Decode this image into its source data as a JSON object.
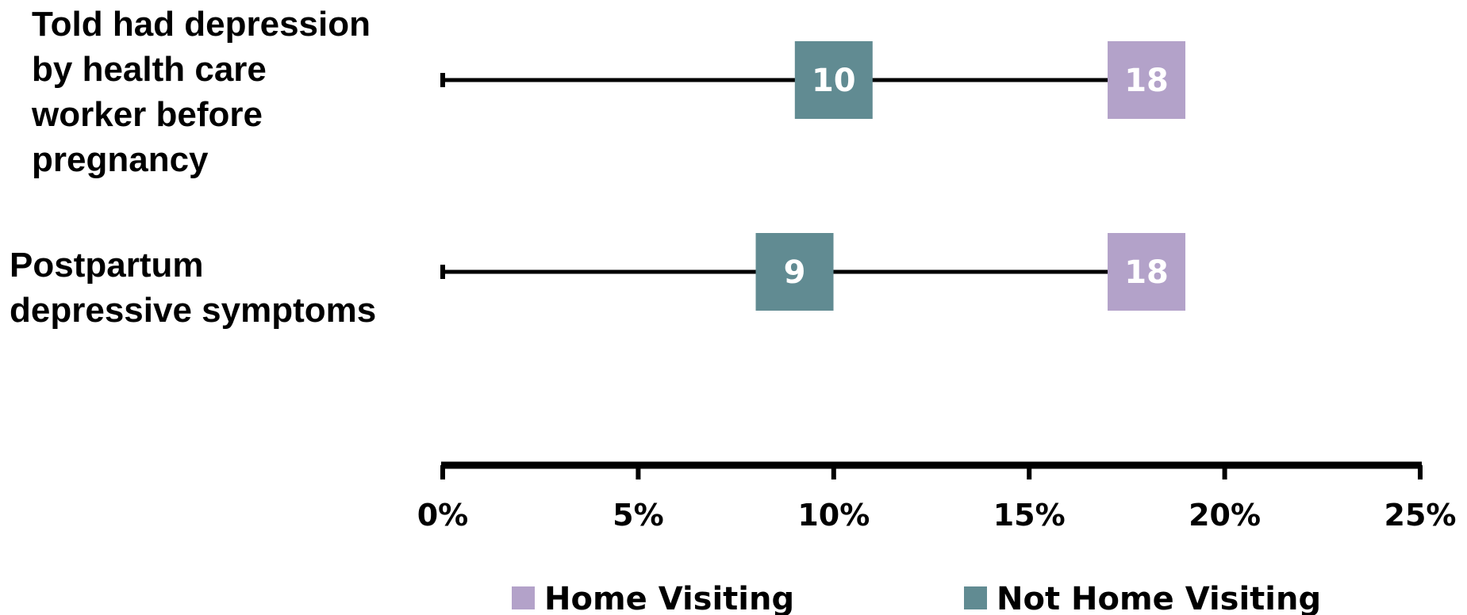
{
  "chart_data": {
    "type": "dot-range",
    "categories": [
      {
        "lines": [
          "Told had depression",
          "by health care",
          "worker before",
          "pregnancy"
        ]
      },
      {
        "lines": [
          "Postpartum",
          "depressive symptoms"
        ]
      }
    ],
    "series": [
      {
        "name": "Home Visiting",
        "color": "#b3a2c9",
        "values": [
          18,
          18
        ]
      },
      {
        "name": "Not Home Visiting",
        "color": "#618b92",
        "values": [
          10,
          9
        ]
      }
    ],
    "xlim": [
      0,
      25
    ],
    "xticks": [
      0,
      5,
      10,
      15,
      20,
      25
    ],
    "tick_labels": [
      "0%",
      "5%",
      "10%",
      "15%",
      "20%",
      "25%"
    ],
    "legend": {
      "position": "bottom"
    }
  }
}
